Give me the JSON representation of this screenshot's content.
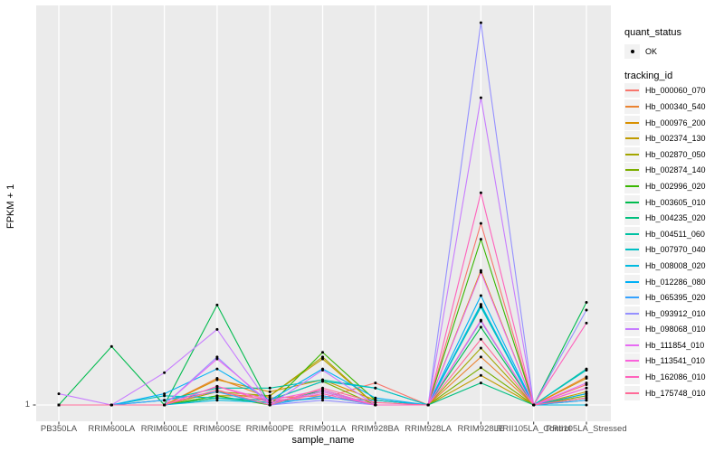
{
  "figure": {
    "background": "#FFFFFF",
    "panel_background": "#EBEBEB",
    "grid_color": "#FFFFFF",
    "tick_color": "#333333",
    "tick_label_color": "#4D4D4D",
    "point_color": "#000000"
  },
  "legend": {
    "quant_status_title": "quant_status",
    "quant_status_items": [
      {
        "label": "OK",
        "marker": "black-point"
      }
    ],
    "tracking_id_title": "tracking_id"
  },
  "chart_data": {
    "type": "line",
    "title": "",
    "xlabel": "sample_name",
    "ylabel": "FPKM + 1",
    "y_scale": "log10",
    "y_ticks": [
      "1"
    ],
    "ylim_log_estimate": [
      1,
      2200
    ],
    "grid": "major",
    "legend_position": "right",
    "point_marker": "filled-black-circle",
    "categories": [
      "PB350LA",
      "RRIM600LA",
      "RRIM600LE",
      "RRIM600SE",
      "RRIM600PE",
      "RRIM901LA",
      "RRIM928BA",
      "RRIM928LA",
      "RRIM928LE",
      "RRII105LA_Control",
      "RRII105LA_Stressed"
    ],
    "series": [
      {
        "name": "Hb_000060_070",
        "color": "#F8766D",
        "values": [
          1,
          1,
          1,
          1.3,
          1.1,
          1.15,
          1.55,
          1,
          37,
          1,
          1.5
        ]
      },
      {
        "name": "Hb_000340_540",
        "color": "#EA8331",
        "values": [
          1,
          1,
          1,
          1.7,
          1.15,
          1.2,
          1,
          1,
          2.6,
          1,
          1.75
        ]
      },
      {
        "name": "Hb_000976_200",
        "color": "#D89000",
        "values": [
          1,
          1,
          1,
          1.65,
          1.3,
          1.65,
          1.1,
          1,
          14.5,
          1,
          1.7
        ]
      },
      {
        "name": "Hb_002374_130",
        "color": "#C09B00",
        "values": [
          1,
          1,
          1,
          1.2,
          1.2,
          2.5,
          1,
          1,
          1.8,
          1,
          1.3
        ]
      },
      {
        "name": "Hb_002870_050",
        "color": "#A3A500",
        "values": [
          1,
          1,
          1,
          1.3,
          1.2,
          2.6,
          1,
          1,
          3.1,
          1,
          1.25
        ]
      },
      {
        "name": "Hb_002874_140",
        "color": "#7CAE00",
        "values": [
          1,
          1,
          1,
          1.15,
          1.1,
          1.6,
          1,
          1,
          2.1,
          1,
          1.2
        ]
      },
      {
        "name": "Hb_002996_020",
        "color": "#39B600",
        "values": [
          1,
          1,
          1,
          1.2,
          1,
          2.85,
          1.1,
          1,
          27,
          1,
          1.15
        ]
      },
      {
        "name": "Hb_003605_010",
        "color": "#00BB4E",
        "values": [
          1,
          3.2,
          1,
          7.3,
          1,
          1.35,
          1,
          1,
          4.7,
          1,
          7.7
        ]
      },
      {
        "name": "Hb_004235_020",
        "color": "#00BF7D",
        "values": [
          1,
          1,
          1,
          1.15,
          1.05,
          1.3,
          1,
          1,
          1.55,
          1,
          1.1
        ]
      },
      {
        "name": "Hb_004511_060",
        "color": "#00C1A3",
        "values": [
          1,
          1,
          1.1,
          1.4,
          1.4,
          1.65,
          1.4,
          1,
          7.2,
          1,
          2.05
        ]
      },
      {
        "name": "Hb_007970_040",
        "color": "#00BFC4",
        "values": [
          1,
          1,
          1.2,
          1.15,
          1.1,
          1.6,
          1.4,
          1,
          7.0,
          1,
          2.0
        ]
      },
      {
        "name": "Hb_008008_020",
        "color": "#00BAE0",
        "values": [
          1,
          1,
          1,
          1.1,
          1.05,
          1.15,
          1.1,
          1,
          7.4,
          1,
          1
        ]
      },
      {
        "name": "Hb_012286_080",
        "color": "#00B0F6",
        "values": [
          1,
          1,
          1.25,
          2.05,
          1.1,
          2.05,
          1.15,
          1,
          8.8,
          1,
          1.25
        ]
      },
      {
        "name": "Hb_065395_020",
        "color": "#35A2FF",
        "values": [
          1,
          1,
          1.1,
          1.3,
          1,
          1.2,
          1,
          1,
          5.3,
          1,
          1.1
        ]
      },
      {
        "name": "Hb_093912_010",
        "color": "#9590FF",
        "values": [
          1,
          1,
          1,
          2.6,
          1,
          1.1,
          1,
          1,
          2000,
          1,
          6.6
        ]
      },
      {
        "name": "Hb_098068_010",
        "color": "#C77CFF",
        "values": [
          1.25,
          1,
          1.9,
          4.5,
          1,
          2.0,
          1,
          1,
          450,
          1,
          1.4
        ]
      },
      {
        "name": "Hb_111854_010",
        "color": "#E76BF3",
        "values": [
          1,
          1,
          1,
          2.5,
          1.05,
          1.3,
          1,
          1,
          14,
          1,
          1.55
        ]
      },
      {
        "name": "Hb_113541_010",
        "color": "#FA62DB",
        "values": [
          1,
          1,
          1,
          1.45,
          1.1,
          1.35,
          1,
          1,
          5.4,
          1,
          1.4
        ]
      },
      {
        "name": "Hb_162086_010",
        "color": "#FF62BC",
        "values": [
          1,
          1,
          1,
          1.45,
          1.05,
          1.25,
          1,
          1,
          68,
          1,
          5.1
        ]
      },
      {
        "name": "Hb_175748_010",
        "color": "#FF6A98",
        "values": [
          1,
          1,
          1,
          1.35,
          1,
          1.4,
          1.05,
          1,
          3.7,
          1,
          1.15
        ]
      }
    ]
  }
}
